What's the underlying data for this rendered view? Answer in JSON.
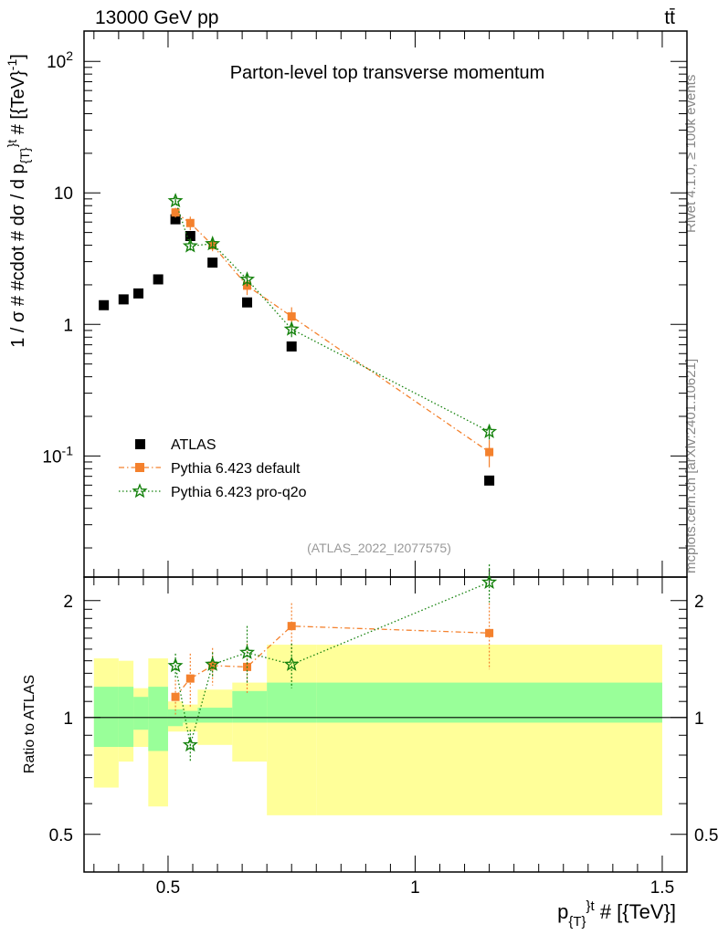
{
  "header": {
    "left_label": "13000 GeV pp",
    "right_label": "tt̄"
  },
  "side_labels": {
    "rivet": "Rivet 4.1.0, ≥ 100k events",
    "mcplots": "mcplots.cern.ch [arXiv:2401.10621]"
  },
  "chart_data": [
    {
      "type": "scatter",
      "panel": "main",
      "title": "Parton-level top transverse momentum",
      "analysis_id": "(ATLAS_2022_I2077575)",
      "xlabel": "p_{T}^{t} # [{TeV}]",
      "ylabel": "1 / σ # #cdot # dσ / d p_{T}^{t} # [{TeV}^{-1}]",
      "yscale": "log",
      "xlim": [
        0.33,
        1.55
      ],
      "ylim": [
        0.012,
        170
      ],
      "y_tick_labels": [
        "10^-1",
        "1",
        "10",
        "10^2"
      ],
      "legend_position": "bottom-left",
      "series": [
        {
          "name": "ATLAS",
          "color": "#000000",
          "marker": "square",
          "x": [
            0.37,
            0.41,
            0.44,
            0.48,
            0.515,
            0.545,
            0.59,
            0.66,
            0.75,
            1.15
          ],
          "y": [
            1.4,
            1.55,
            1.72,
            2.2,
            6.3,
            4.7,
            2.95,
            1.47,
            0.68,
            0.065
          ]
        },
        {
          "name": "Pythia 6.423 default",
          "color": "#f4812d",
          "marker": "square",
          "line": "dashdot",
          "x": [
            0.515,
            0.545,
            0.59,
            0.66,
            0.75,
            1.15
          ],
          "y": [
            7.1,
            5.9,
            4.0,
            1.97,
            1.15,
            0.107
          ],
          "err": [
            0.6,
            0.7,
            0.4,
            0.3,
            0.2,
            0.025
          ]
        },
        {
          "name": "Pythia 6.423 pro-q2o",
          "color": "#15820d",
          "marker": "star",
          "line": "dotted",
          "x": [
            0.515,
            0.545,
            0.59,
            0.66,
            0.75,
            1.15
          ],
          "y": [
            8.7,
            3.95,
            4.1,
            2.2,
            0.92,
            0.153
          ],
          "err": [
            0.6,
            0.3,
            0.35,
            0.25,
            0.12,
            0.02
          ]
        }
      ]
    },
    {
      "type": "scatter",
      "panel": "ratio",
      "ylabel": "Ratio to ATLAS",
      "xlabel": "p_{T}^{t} # [{TeV}]",
      "xlim": [
        0.33,
        1.55
      ],
      "ylim": [
        0.4,
        2.3
      ],
      "x_ticks": [
        0.5,
        1,
        1.5
      ],
      "x_tick_labels": [
        "0.5",
        "1",
        "1.5"
      ],
      "y_tick_labels": [
        "0.5",
        "1",
        "2"
      ],
      "bands": {
        "bins": [
          0.35,
          0.4,
          0.43,
          0.46,
          0.5,
          0.53,
          0.56,
          0.63,
          0.7,
          0.8,
          1.5
        ],
        "stat_low": [
          0.84,
          0.84,
          0.93,
          0.82,
          0.95,
          0.97,
          0.97,
          0.97,
          0.97,
          0.97
        ],
        "stat_high": [
          1.2,
          1.2,
          1.13,
          1.2,
          1.05,
          1.04,
          1.06,
          1.17,
          1.23,
          1.23
        ],
        "syst_low": [
          0.66,
          0.77,
          0.84,
          0.59,
          0.92,
          0.92,
          0.85,
          0.77,
          0.56,
          0.56
        ],
        "syst_high": [
          1.42,
          1.4,
          1.19,
          1.42,
          1.1,
          1.08,
          1.18,
          1.23,
          1.54,
          1.54
        ]
      },
      "series": [
        {
          "name": "Pythia 6.423 default",
          "color": "#f4812d",
          "x": [
            0.515,
            0.545,
            0.59,
            0.66,
            0.75,
            1.15
          ],
          "y": [
            1.13,
            1.26,
            1.36,
            1.35,
            1.72,
            1.65
          ],
          "err": [
            0.12,
            0.2,
            0.15,
            0.2,
            0.25,
            0.32
          ]
        },
        {
          "name": "Pythia 6.423 pro-q2o",
          "color": "#15820d",
          "x": [
            0.515,
            0.545,
            0.59,
            0.66,
            0.75,
            1.15
          ],
          "y": [
            1.36,
            0.85,
            1.37,
            1.47,
            1.37,
            2.23
          ],
          "err": [
            0.1,
            0.08,
            0.1,
            0.25,
            0.18,
            0.25
          ]
        }
      ]
    }
  ]
}
